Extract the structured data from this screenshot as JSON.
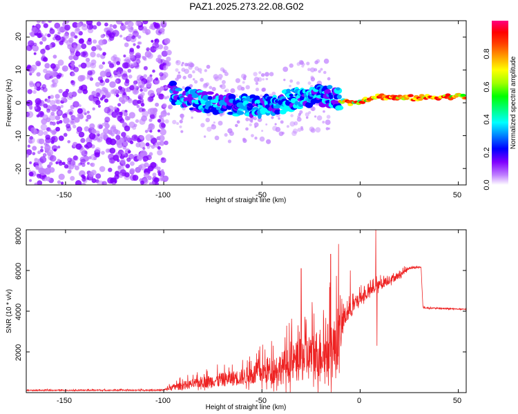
{
  "title": "PAZ1.2025.273.22.08.G02",
  "chart_data": [
    {
      "type": "heatmap",
      "name": "spectrogram",
      "xlabel": "Height of straight line (km)",
      "ylabel": "Frequency (Hz)",
      "xlim": [
        -170,
        54
      ],
      "ylim": [
        -25,
        25
      ],
      "xticks": [
        "-150",
        "-100",
        "-50",
        "0",
        "50"
      ],
      "yticks": [
        "20",
        "10",
        "0",
        "-10",
        "-20"
      ],
      "colorbar": {
        "label": "Normalized spectral amplitude",
        "range": [
          0,
          1
        ],
        "ticks": [
          "0.0",
          "0.2",
          "0.4",
          "0.6",
          "0.8"
        ],
        "colors": [
          "#ffffff",
          "#c080ff",
          "#8000ff",
          "#0000ff",
          "#00a0ff",
          "#00ffff",
          "#00ff80",
          "#00ff00",
          "#a0ff00",
          "#ffff00",
          "#ffa000",
          "#ff4000",
          "#ff0000",
          "#ff0080"
        ]
      },
      "ridge": [
        {
          "x": -95,
          "y": 3
        },
        {
          "x": -85,
          "y": 1
        },
        {
          "x": -75,
          "y": 0
        },
        {
          "x": -65,
          "y": -1
        },
        {
          "x": -55,
          "y": -1
        },
        {
          "x": -45,
          "y": -1
        },
        {
          "x": -35,
          "y": 1
        },
        {
          "x": -25,
          "y": 2
        },
        {
          "x": -15,
          "y": 2
        },
        {
          "x": -10,
          "y": 1
        },
        {
          "x": -5,
          "y": 0
        },
        {
          "x": 0,
          "y": 0.5
        },
        {
          "x": 8,
          "y": 2
        },
        {
          "x": 20,
          "y": 1.5
        },
        {
          "x": 30,
          "y": 1.5
        },
        {
          "x": 40,
          "y": 1.8
        },
        {
          "x": 54,
          "y": 2
        }
      ]
    },
    {
      "type": "line",
      "name": "snr",
      "xlabel": "Height of straight line (km)",
      "ylabel": "SNR (10 * v/v)",
      "xlim": [
        -170,
        54
      ],
      "ylim": [
        0,
        8000
      ],
      "xticks": [
        "-150",
        "-100",
        "-50",
        "0",
        "50"
      ],
      "yticks": [
        "8000",
        "6000",
        "4000",
        "2000"
      ],
      "color": "#ee2222",
      "envelope": [
        {
          "x": -170,
          "base": 100,
          "amp": 60
        },
        {
          "x": -100,
          "base": 110,
          "amp": 70
        },
        {
          "x": -95,
          "base": 200,
          "amp": 400
        },
        {
          "x": -80,
          "base": 400,
          "amp": 700
        },
        {
          "x": -60,
          "base": 600,
          "amp": 1000
        },
        {
          "x": -40,
          "base": 900,
          "amp": 2000
        },
        {
          "x": -25,
          "base": 1300,
          "amp": 3000
        },
        {
          "x": -12,
          "base": 1600,
          "amp": 3800
        },
        {
          "x": -8,
          "base": 3500,
          "amp": 1200
        },
        {
          "x": 0,
          "base": 4500,
          "amp": 700
        },
        {
          "x": 10,
          "base": 5200,
          "amp": 600
        },
        {
          "x": 20,
          "base": 5700,
          "amp": 400
        },
        {
          "x": 25,
          "base": 6100,
          "amp": 150
        },
        {
          "x": 31,
          "base": 6150,
          "amp": 100
        },
        {
          "x": 32,
          "base": 4150,
          "amp": 80
        },
        {
          "x": 54,
          "base": 4080,
          "amp": 60
        }
      ],
      "spikes": [
        {
          "x": 8,
          "y": 8000
        },
        {
          "x": 8.6,
          "y": 2300
        },
        {
          "x": -11,
          "y": 7300
        },
        {
          "x": -30,
          "y": 6100
        },
        {
          "x": -15,
          "y": 6800
        },
        {
          "x": -5,
          "y": 6000
        }
      ]
    }
  ]
}
